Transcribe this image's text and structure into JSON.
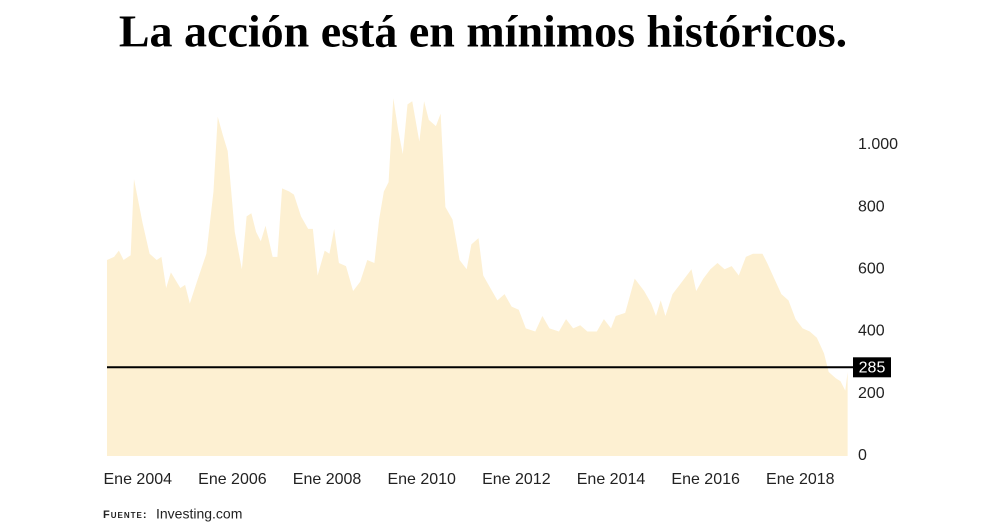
{
  "chart_data": {
    "type": "area",
    "title": "La acción está en mínimos históricos.",
    "source_label": "Fuente:",
    "source": "Investing.com",
    "x": [
      2003.35,
      2003.5,
      2003.6,
      2003.7,
      2003.85,
      2003.92,
      2004.1,
      2004.25,
      2004.4,
      2004.5,
      2004.6,
      2004.7,
      2004.9,
      2005.0,
      2005.1,
      2005.25,
      2005.45,
      2005.6,
      2005.69,
      2005.8,
      2005.9,
      2006.05,
      2006.2,
      2006.3,
      2006.4,
      2006.5,
      2006.6,
      2006.7,
      2006.85,
      2006.95,
      2007.05,
      2007.2,
      2007.3,
      2007.45,
      2007.6,
      2007.7,
      2007.8,
      2007.95,
      2008.05,
      2008.15,
      2008.25,
      2008.4,
      2008.55,
      2008.7,
      2008.85,
      2009.0,
      2009.1,
      2009.2,
      2009.3,
      2009.4,
      2009.5,
      2009.6,
      2009.7,
      2009.8,
      2009.95,
      2010.05,
      2010.15,
      2010.3,
      2010.4,
      2010.5,
      2010.65,
      2010.8,
      2010.95,
      2011.05,
      2011.2,
      2011.3,
      2011.45,
      2011.6,
      2011.75,
      2011.9,
      2012.05,
      2012.2,
      2012.4,
      2012.55,
      2012.7,
      2012.9,
      2013.05,
      2013.2,
      2013.35,
      2013.5,
      2013.7,
      2013.85,
      2014.0,
      2014.1,
      2014.3,
      2014.5,
      2014.7,
      2014.85,
      2014.95,
      2015.05,
      2015.15,
      2015.3,
      2015.45,
      2015.6,
      2015.7,
      2015.8,
      2015.95,
      2016.1,
      2016.25,
      2016.4,
      2016.55,
      2016.7,
      2016.85,
      2017.0,
      2017.2,
      2017.3,
      2017.45,
      2017.6,
      2017.75,
      2017.9,
      2018.05,
      2018.2,
      2018.35,
      2018.5,
      2018.6,
      2018.75,
      2018.85,
      2018.95,
      2019.0
    ],
    "values": [
      630,
      640,
      660,
      630,
      645,
      890,
      750,
      650,
      630,
      640,
      540,
      590,
      540,
      550,
      490,
      560,
      650,
      850,
      1090,
      1030,
      980,
      720,
      600,
      770,
      780,
      720,
      690,
      740,
      640,
      640,
      860,
      850,
      840,
      770,
      730,
      730,
      580,
      660,
      650,
      730,
      620,
      610,
      530,
      560,
      630,
      620,
      760,
      850,
      880,
      1150,
      1050,
      970,
      1130,
      1140,
      1010,
      1140,
      1080,
      1060,
      1100,
      800,
      760,
      630,
      600,
      680,
      700,
      580,
      540,
      500,
      520,
      480,
      470,
      410,
      400,
      450,
      410,
      400,
      440,
      410,
      420,
      400,
      400,
      440,
      410,
      450,
      460,
      570,
      530,
      490,
      450,
      500,
      450,
      520,
      550,
      580,
      600,
      530,
      570,
      600,
      620,
      600,
      610,
      580,
      640,
      650,
      650,
      620,
      570,
      520,
      500,
      440,
      410,
      400,
      380,
      330,
      270,
      250,
      240,
      210,
      270
    ],
    "color": "#fdf0d2",
    "xlim": [
      2003.35,
      2019.05
    ],
    "xticks": [
      {
        "value": 2004,
        "label": "Ene 2004"
      },
      {
        "value": 2006,
        "label": "Ene 2006"
      },
      {
        "value": 2008,
        "label": "Ene 2008"
      },
      {
        "value": 2010,
        "label": "Ene 2010"
      },
      {
        "value": 2012,
        "label": "Ene 2012"
      },
      {
        "value": 2014,
        "label": "Ene 2014"
      },
      {
        "value": 2016,
        "label": "Ene 2016"
      },
      {
        "value": 2018,
        "label": "Ene 2018"
      }
    ],
    "ylim": [
      0,
      1160
    ],
    "yticks": [
      0,
      200,
      400,
      600,
      800,
      {
        "value": 1000,
        "label": "1.000"
      }
    ],
    "reference_line": 285
  }
}
